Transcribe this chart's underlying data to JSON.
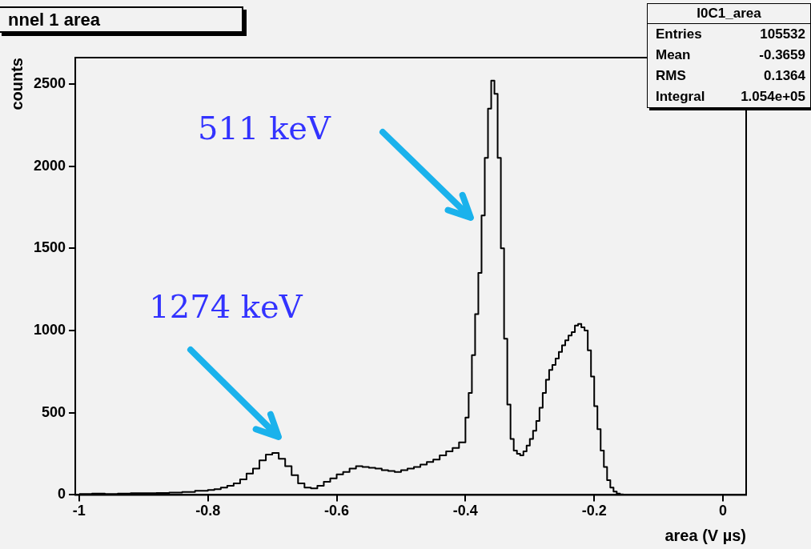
{
  "chart_data": {
    "type": "histogram",
    "title": "nnel 1 area",
    "xlabel": "area (V µs)",
    "ylabel": "counts",
    "bins": [
      -1,
      -0.98,
      -0.96,
      -0.94,
      -0.92,
      -0.9,
      -0.88,
      -0.86,
      -0.84,
      -0.82,
      -0.8,
      -0.79,
      -0.78,
      -0.77,
      -0.76,
      -0.75,
      -0.74,
      -0.73,
      -0.72,
      -0.71,
      -0.7,
      -0.69,
      -0.68,
      -0.67,
      -0.66,
      -0.65,
      -0.64,
      -0.63,
      -0.62,
      -0.61,
      -0.6,
      -0.59,
      -0.58,
      -0.57,
      -0.56,
      -0.55,
      -0.54,
      -0.53,
      -0.52,
      -0.51,
      -0.5,
      -0.49,
      -0.48,
      -0.47,
      -0.46,
      -0.45,
      -0.44,
      -0.43,
      -0.42,
      -0.41,
      -0.4,
      -0.395,
      -0.39,
      -0.385,
      -0.38,
      -0.375,
      -0.37,
      -0.365,
      -0.36,
      -0.355,
      -0.35,
      -0.345,
      -0.34,
      -0.335,
      -0.33,
      -0.325,
      -0.32,
      -0.315,
      -0.31,
      -0.305,
      -0.3,
      -0.295,
      -0.29,
      -0.285,
      -0.28,
      -0.275,
      -0.27,
      -0.265,
      -0.26,
      -0.255,
      -0.25,
      -0.245,
      -0.24,
      -0.235,
      -0.23,
      -0.225,
      -0.22,
      -0.215,
      -0.21,
      -0.205,
      -0.2,
      -0.195,
      -0.19,
      -0.185,
      -0.18,
      -0.175,
      -0.17,
      -0.165,
      -0.16,
      -0.155,
      -0.15
    ],
    "values": [
      5,
      8,
      6,
      8,
      10,
      10,
      12,
      14,
      18,
      25,
      30,
      35,
      45,
      55,
      70,
      95,
      130,
      160,
      210,
      245,
      255,
      220,
      175,
      120,
      70,
      45,
      40,
      55,
      80,
      100,
      125,
      140,
      160,
      175,
      170,
      165,
      160,
      150,
      145,
      140,
      150,
      160,
      170,
      185,
      200,
      215,
      240,
      265,
      285,
      320,
      470,
      620,
      850,
      1100,
      1350,
      1700,
      2050,
      2350,
      2520,
      2440,
      2050,
      1500,
      950,
      550,
      340,
      270,
      250,
      240,
      265,
      300,
      340,
      390,
      450,
      530,
      620,
      700,
      760,
      790,
      830,
      870,
      910,
      940,
      970,
      990,
      1030,
      1040,
      1020,
      1000,
      880,
      720,
      540,
      400,
      270,
      170,
      90,
      45,
      20,
      8,
      3,
      0
    ],
    "color": "#000000",
    "xlim": [
      -1.006,
      0.036
    ],
    "ylim": [
      0,
      2660
    ],
    "xticks": [
      -1,
      -0.8,
      -0.6,
      -0.4,
      -0.2,
      0
    ],
    "yticks": [
      0,
      500,
      1000,
      1500,
      2000,
      2500
    ],
    "annotations": [
      "511 keV",
      "1274 keV",
      "I0C1_area",
      "Entries",
      "105532",
      "Mean",
      "-0.3659",
      "RMS",
      "0.1364",
      "Integral",
      "1.054e+05"
    ],
    "legend": false,
    "grid": false
  }
}
